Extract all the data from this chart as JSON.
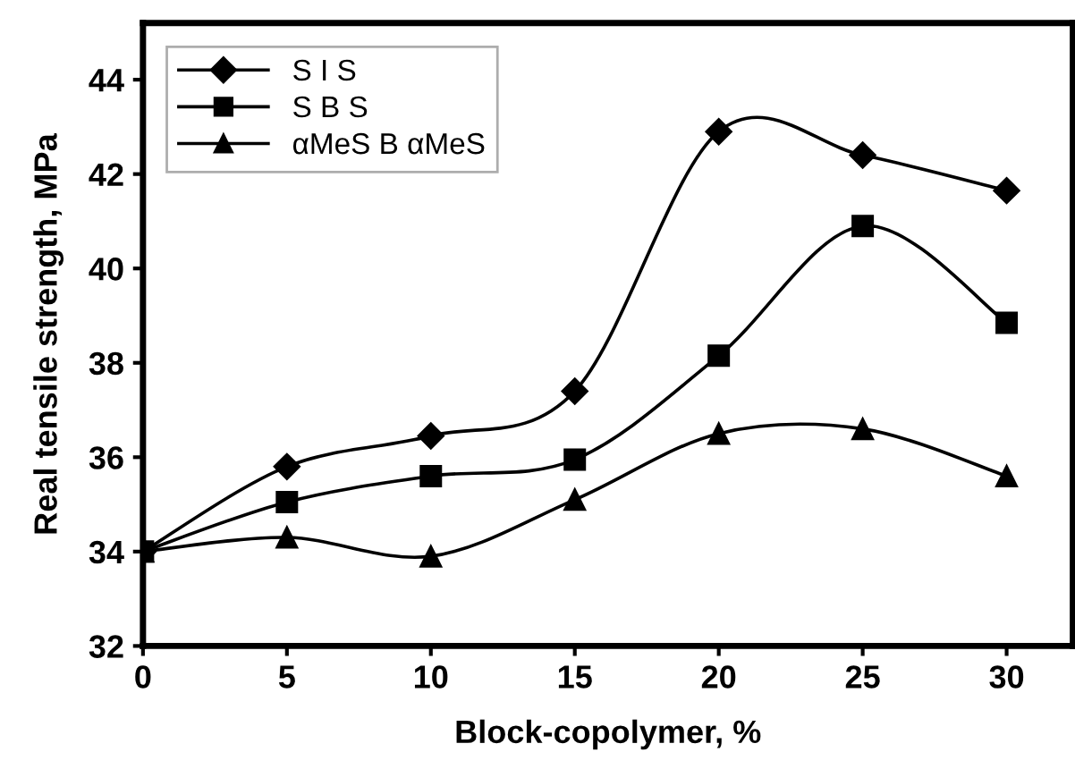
{
  "chart_data": {
    "type": "line",
    "xlabel": "Block-copolymer, %",
    "ylabel": "Real tensile strength, MPa",
    "x": [
      0,
      5,
      10,
      15,
      20,
      25,
      30
    ],
    "series": [
      {
        "name": "S I S",
        "color": "#000000",
        "marker": "diamond",
        "values": [
          34.0,
          35.8,
          36.45,
          37.4,
          42.9,
          42.4,
          41.65
        ]
      },
      {
        "name": "S B S",
        "color": "#000000",
        "marker": "square",
        "values": [
          34.0,
          35.05,
          35.6,
          35.95,
          38.15,
          40.9,
          38.85
        ]
      },
      {
        "name": "αMeS B αMeS",
        "color": "#000000",
        "marker": "triangle",
        "values": [
          34.0,
          34.3,
          33.9,
          35.1,
          36.5,
          36.6,
          35.6
        ]
      }
    ],
    "xlim": [
      0,
      32.3
    ],
    "xticks": [
      0,
      5,
      10,
      15,
      20,
      25,
      30
    ],
    "ylim": [
      32,
      45.2
    ],
    "yticks": [
      32,
      34,
      36,
      38,
      40,
      42,
      44
    ],
    "grid": false,
    "legend": "top left",
    "line_style": "solid"
  }
}
